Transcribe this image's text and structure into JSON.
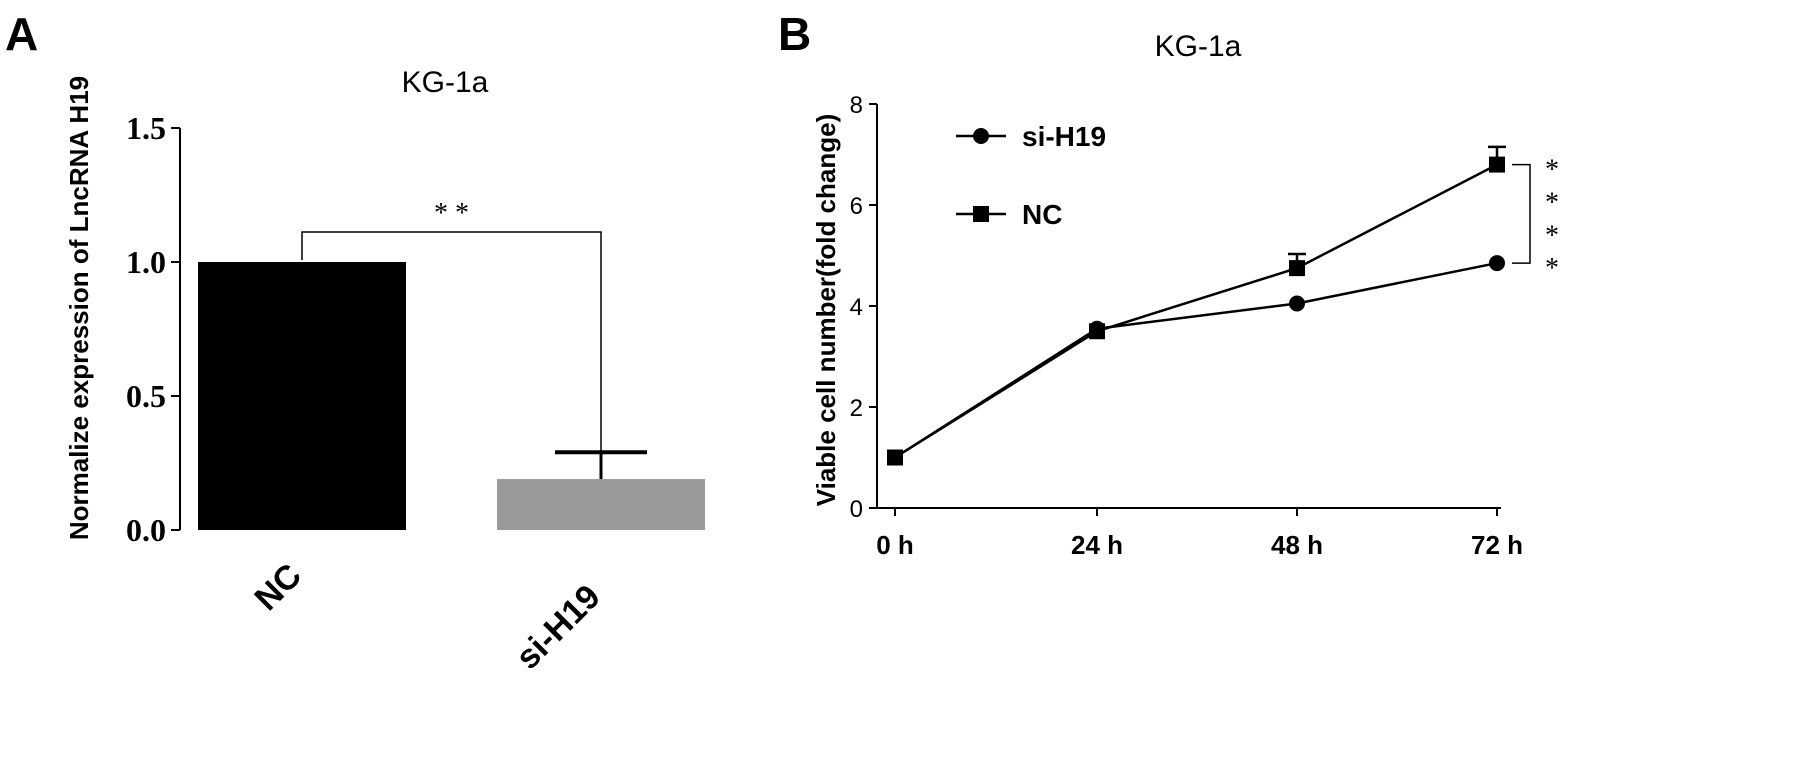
{
  "chart_data": [
    {
      "panel_label": "A",
      "type": "bar",
      "title": "KG-1a",
      "xlabel": "",
      "ylabel": "Normalize expression of LncRNA H19",
      "categories": [
        "NC",
        "si-H19"
      ],
      "values": [
        1.0,
        0.19
      ],
      "error": [
        0.0,
        0.1
      ],
      "bar_colors": [
        "#000000",
        "#999999"
      ],
      "ylim": [
        0,
        1.5
      ],
      "yticks": [
        0.0,
        0.5,
        1.0,
        1.5
      ],
      "ytick_labels": [
        "0.0",
        "0.5",
        "1.0",
        "1.5"
      ],
      "grid": false,
      "significance": {
        "between": [
          "NC",
          "si-H19"
        ],
        "label": "* *"
      }
    },
    {
      "panel_label": "B",
      "type": "line",
      "title": "KG-1a",
      "xlabel": "",
      "ylabel": "Viable cell number(fold change)",
      "x": [
        "0 h",
        "24 h",
        "48 h",
        "72 h"
      ],
      "x_values": [
        0,
        24,
        48,
        72
      ],
      "series": [
        {
          "name": "si-H19",
          "marker": "circle",
          "values": [
            1.0,
            3.55,
            4.05,
            4.85
          ],
          "error": [
            0.05,
            0.08,
            0.06,
            0.08
          ]
        },
        {
          "name": "NC",
          "marker": "square",
          "values": [
            1.0,
            3.5,
            4.75,
            6.8
          ],
          "error": [
            0.05,
            0.08,
            0.28,
            0.35
          ]
        }
      ],
      "ylim": [
        0,
        8
      ],
      "yticks": [
        0,
        2,
        4,
        6,
        8
      ],
      "ytick_labels": [
        "0",
        "2",
        "4",
        "6",
        "8"
      ],
      "grid": false,
      "legend_position": "top-left",
      "significance": {
        "at": "72 h",
        "label": "****"
      }
    }
  ]
}
